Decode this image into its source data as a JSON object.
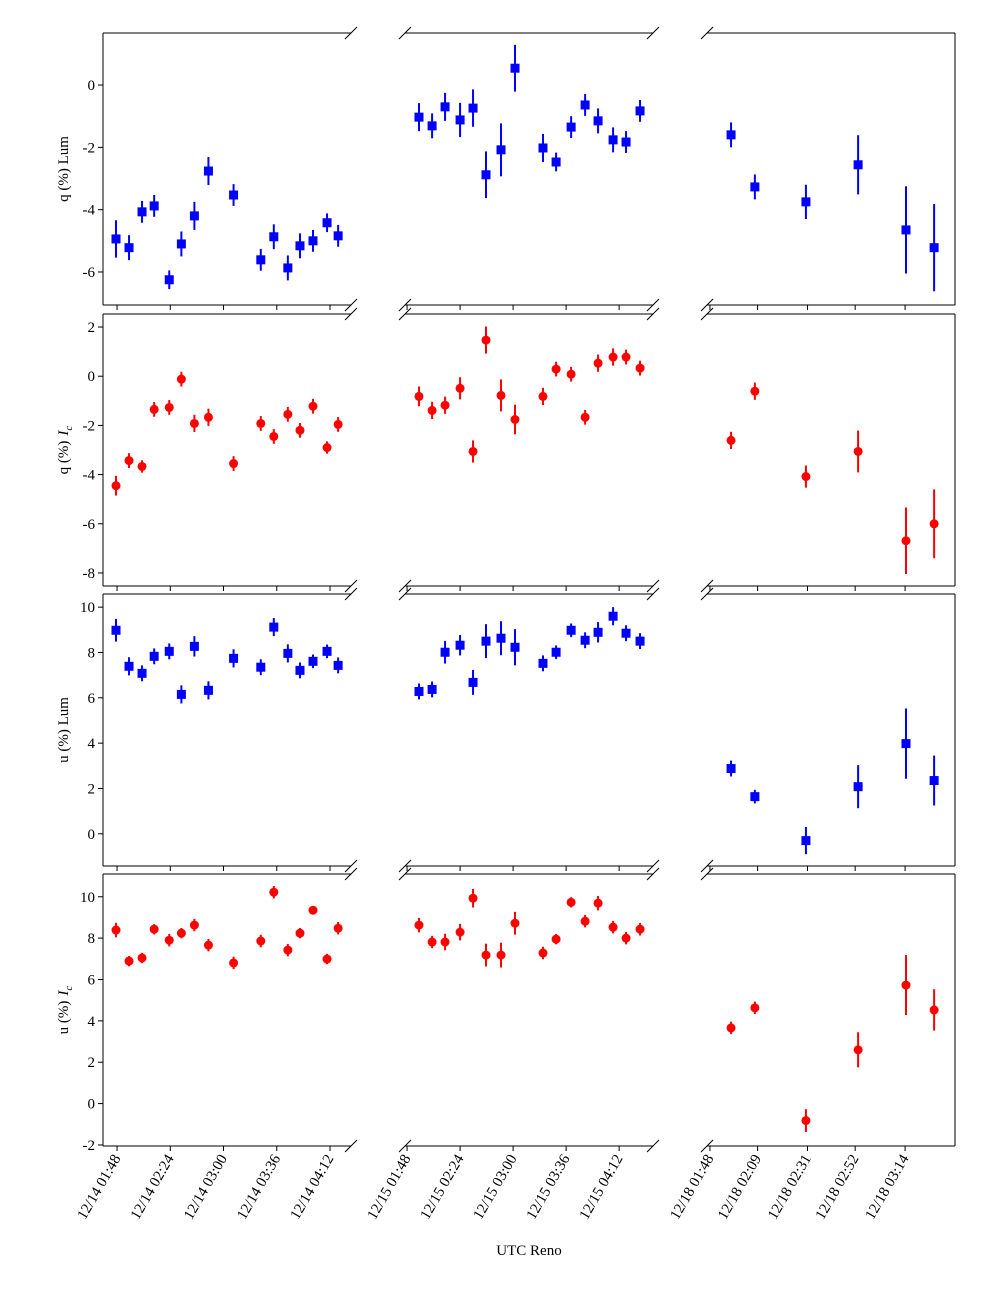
{
  "chart_data": {
    "type": "scatter",
    "xlabel": "UTC Reno",
    "columns": [
      {
        "xlim": [
          98.5,
          266.2
        ],
        "xticks": [
          {
            "value": 108,
            "label": "12/14 01:48"
          },
          {
            "value": 144,
            "label": "12/14 02:24"
          },
          {
            "value": 180,
            "label": "12/14 03:00"
          },
          {
            "value": 216,
            "label": "12/14 03:36"
          },
          {
            "value": 252,
            "label": "12/14 04:12"
          }
        ],
        "x": [
          107.3,
          116.1,
          124.9,
          133.1,
          143.3,
          151.5,
          160.3,
          169.8,
          186.8,
          205.2,
          214.0,
          223.5,
          231.7,
          240.5,
          250.0,
          257.5
        ]
      },
      {
        "xlim": [
          106.6,
          275.0
        ],
        "xticks": [
          {
            "value": 108,
            "label": "12/15 01:48"
          },
          {
            "value": 144,
            "label": "12/15 02:24"
          },
          {
            "value": 180,
            "label": "12/15 03:00"
          },
          {
            "value": 216,
            "label": "12/15 03:36"
          },
          {
            "value": 252,
            "label": "12/15 04:12"
          }
        ],
        "x": [
          116.1,
          125.0,
          133.8,
          144.0,
          152.8,
          161.6,
          171.8,
          181.3,
          200.3,
          209.2,
          219.4,
          228.9,
          237.7,
          247.9,
          256.7,
          266.2
        ]
      },
      {
        "xlim": [
          106.7,
          216.0
        ],
        "xticks": [
          {
            "value": 108,
            "label": "12/18 01:48"
          },
          {
            "value": 129,
            "label": "12/18 02:09"
          },
          {
            "value": 151,
            "label": "12/18 02:31"
          },
          {
            "value": 172,
            "label": "12/18 02:52"
          },
          {
            "value": 194,
            "label": "12/18 03:14"
          }
        ],
        "x": [
          117.3,
          127.8,
          150.3,
          173.3,
          194.4,
          206.8
        ]
      }
    ],
    "rows": [
      {
        "ylabel": "q (%) Lum",
        "color": "#0000ff",
        "marker": "square",
        "ylim": [
          -7.06,
          1.67
        ],
        "yticks": [
          -6,
          -4,
          -2,
          0
        ],
        "panels": [
          {
            "values": [
              -4.94,
              -5.22,
              -4.07,
              -3.88,
              -6.25,
              -5.1,
              -4.2,
              -2.76,
              -3.53,
              -5.61,
              -4.87,
              -5.87,
              -5.16,
              -5.0,
              -4.42,
              -4.84
            ],
            "errors": [
              0.6,
              0.4,
              0.35,
              0.35,
              0.3,
              0.4,
              0.45,
              0.45,
              0.35,
              0.35,
              0.4,
              0.4,
              0.4,
              0.35,
              0.3,
              0.35
            ]
          },
          {
            "values": [
              -1.03,
              -1.31,
              -0.7,
              -1.12,
              -0.74,
              -2.88,
              -2.08,
              0.54,
              -2.02,
              -2.47,
              -1.35,
              -0.64,
              -1.15,
              -1.76,
              -1.83,
              -0.83
            ],
            "errors": [
              0.45,
              0.4,
              0.45,
              0.55,
              0.6,
              0.75,
              0.85,
              0.75,
              0.45,
              0.3,
              0.35,
              0.35,
              0.4,
              0.4,
              0.35,
              0.35
            ]
          },
          {
            "values": [
              -1.6,
              -3.27,
              -3.75,
              -2.56,
              -4.65,
              -5.22
            ],
            "errors": [
              0.4,
              0.4,
              0.55,
              0.95,
              1.4,
              1.4
            ]
          }
        ]
      },
      {
        "ylabel": "q (%)",
        "ylabel_symbol": "I",
        "ylabel_subscript": "c",
        "color": "#ff0000",
        "marker": "circle",
        "ylim": [
          -8.53,
          2.53
        ],
        "yticks": [
          -8,
          -6,
          -4,
          -2,
          0,
          2
        ],
        "panels": [
          {
            "values": [
              -4.45,
              -3.43,
              -3.67,
              -1.35,
              -1.27,
              -0.12,
              -1.92,
              -1.67,
              -3.55,
              -1.92,
              -2.45,
              -1.55,
              -2.2,
              -1.22,
              -2.9,
              -1.96
            ],
            "errors": [
              0.4,
              0.3,
              0.25,
              0.3,
              0.3,
              0.3,
              0.35,
              0.35,
              0.3,
              0.3,
              0.3,
              0.3,
              0.3,
              0.3,
              0.25,
              0.3
            ]
          },
          {
            "values": [
              -0.82,
              -1.39,
              -1.18,
              -0.49,
              -3.06,
              1.47,
              -0.78,
              -1.76,
              -0.82,
              0.29,
              0.08,
              -1.67,
              0.53,
              0.78,
              0.78,
              0.33
            ],
            "errors": [
              0.4,
              0.35,
              0.35,
              0.45,
              0.45,
              0.55,
              0.65,
              0.6,
              0.35,
              0.3,
              0.3,
              0.3,
              0.35,
              0.35,
              0.3,
              0.3
            ]
          },
          {
            "values": [
              -2.61,
              -0.61,
              -4.08,
              -3.06,
              -6.69,
              -6.0
            ],
            "errors": [
              0.35,
              0.35,
              0.45,
              0.85,
              1.35,
              1.4
            ]
          }
        ]
      },
      {
        "ylabel": "u (%) Lum",
        "color": "#0000ff",
        "marker": "square",
        "ylim": [
          -1.42,
          10.58
        ],
        "yticks": [
          0,
          2,
          4,
          6,
          8,
          10
        ],
        "panels": [
          {
            "values": [
              8.98,
              7.39,
              7.08,
              7.83,
              8.05,
              6.15,
              8.27,
              6.33,
              7.74,
              7.35,
              9.12,
              7.96,
              7.21,
              7.61,
              8.05,
              7.43
            ],
            "errors": [
              0.5,
              0.4,
              0.35,
              0.35,
              0.35,
              0.4,
              0.45,
              0.4,
              0.4,
              0.35,
              0.4,
              0.4,
              0.35,
              0.3,
              0.3,
              0.35
            ]
          },
          {
            "values": [
              6.28,
              6.37,
              8.01,
              8.32,
              6.68,
              8.5,
              8.63,
              8.23,
              7.52,
              8.01,
              8.98,
              8.54,
              8.89,
              9.6,
              8.85,
              8.5
            ],
            "errors": [
              0.35,
              0.35,
              0.5,
              0.45,
              0.55,
              0.75,
              0.75,
              0.8,
              0.35,
              0.3,
              0.3,
              0.35,
              0.45,
              0.4,
              0.35,
              0.35
            ]
          },
          {
            "values": [
              2.88,
              1.64,
              -0.3,
              2.08,
              3.98,
              2.35
            ],
            "errors": [
              0.35,
              0.3,
              0.6,
              0.95,
              1.55,
              1.1
            ]
          }
        ]
      },
      {
        "ylabel": "u (%)",
        "ylabel_symbol": "I",
        "ylabel_subscript": "c",
        "color": "#ff0000",
        "marker": "circle",
        "ylim": [
          -2.05,
          11.1
        ],
        "yticks": [
          -2,
          0,
          2,
          4,
          6,
          8,
          10
        ],
        "panels": [
          {
            "values": [
              8.39,
              6.89,
              7.04,
              8.43,
              7.9,
              8.24,
              8.63,
              7.66,
              6.8,
              7.86,
              10.22,
              7.42,
              8.24,
              9.35,
              6.99,
              8.48
            ],
            "errors": [
              0.35,
              0.25,
              0.25,
              0.25,
              0.3,
              0.25,
              0.3,
              0.3,
              0.3,
              0.3,
              0.3,
              0.3,
              0.25,
              0.2,
              0.25,
              0.3
            ]
          },
          {
            "values": [
              8.63,
              7.81,
              7.81,
              8.29,
              9.93,
              7.18,
              7.18,
              8.72,
              7.28,
              7.95,
              9.73,
              8.82,
              9.69,
              8.53,
              8.0,
              8.43
            ],
            "errors": [
              0.35,
              0.3,
              0.4,
              0.4,
              0.45,
              0.55,
              0.6,
              0.55,
              0.3,
              0.25,
              0.25,
              0.3,
              0.35,
              0.3,
              0.3,
              0.3
            ]
          },
          {
            "values": [
              3.66,
              4.63,
              -0.82,
              2.6,
              5.73,
              4.53
            ],
            "errors": [
              0.3,
              0.3,
              0.55,
              0.85,
              1.45,
              1.0
            ]
          }
        ]
      }
    ]
  }
}
